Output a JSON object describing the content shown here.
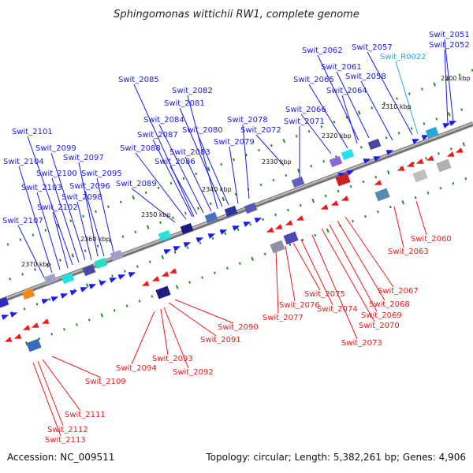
{
  "title": "Sphingomonas wittichii RW1, complete genome",
  "accession_label": "Accession: NC_009511",
  "summary_label": "Topology: circular; Length: 5,382,261 bp; Genes: 4,906",
  "colors": {
    "forward": "#1a1aee",
    "reverse": "#ee1a1a",
    "rna": "#22aadd",
    "backbone": "#888888",
    "tick": "#2a8a2a"
  },
  "kbp_ticks": [
    "2300 kbp",
    "2310 kbp",
    "2320 kbp",
    "2330 kbp",
    "2340 kbp",
    "2350 kbp",
    "2360 kbp",
    "2370 kbp"
  ],
  "forward_genes": [
    "Swit_2051",
    "Swit_2052",
    "Swit_2057",
    "Swit_2058",
    "Swit_2061",
    "Swit_2062",
    "Swit_2064",
    "Swit_2065",
    "Swit_2066",
    "Swit_2071",
    "Swit_2072",
    "Swit_2078",
    "Swit_2079",
    "Swit_2080",
    "Swit_2081",
    "Swit_2082",
    "Swit_2083",
    "Swit_2084",
    "Swit_2085",
    "Swit_2086",
    "Swit_2087",
    "Swit_2088",
    "Swit_2089",
    "Swit_2095",
    "Swit_2096",
    "Swit_2097",
    "Swit_2098",
    "Swit_2099",
    "Swit_2100",
    "Swit_2101",
    "Swit_2102",
    "Swit_2103",
    "Swit_2104",
    "Swit_2107"
  ],
  "rna_genes": [
    "Swit_R0022"
  ],
  "reverse_genes": [
    "Swit_2060",
    "Swit_2063",
    "Swit_2067",
    "Swit_2068",
    "Swit_2069",
    "Swit_2070",
    "Swit_2073",
    "Swit_2074",
    "Swit_2075",
    "Swit_2076",
    "Swit_2077",
    "Swit_2090",
    "Swit_2091",
    "Swit_2092",
    "Swit_2093",
    "Swit_2094",
    "Swit_2109",
    "Swit_2111",
    "Swit_2112",
    "Swit_2113"
  ]
}
